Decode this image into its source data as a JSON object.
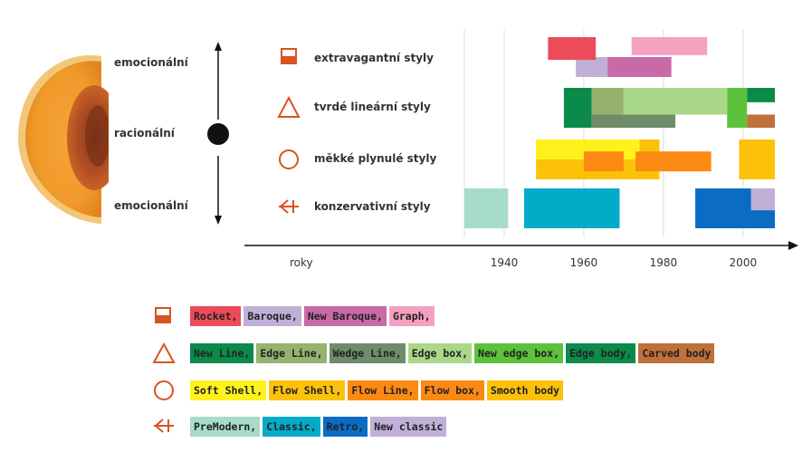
{
  "colors": {
    "accent": "#d9531e",
    "axis": "#111111",
    "grid": "#dddddd"
  },
  "moods": [
    {
      "label": "emocionální"
    },
    {
      "label": "racionální"
    },
    {
      "label": "emocionální"
    }
  ],
  "styles": [
    {
      "icon": "filled-square-icon",
      "label": "extravagantní styly"
    },
    {
      "icon": "triangle-icon",
      "label": "tvrdé lineární styly"
    },
    {
      "icon": "circle-icon",
      "label": "měkké plynulé styly"
    },
    {
      "icon": "arrow-left-icon",
      "label": "konzervativní styly"
    }
  ],
  "chart_data": {
    "type": "timeline",
    "xlabel": "roky",
    "xlim": [
      1930,
      2008
    ],
    "ticks": [
      1940,
      1960,
      1980,
      2000
    ],
    "rows": [
      "extravagantní styly",
      "tvrdé lineární styly",
      "měkké plynulé styly",
      "konzervativní styly"
    ],
    "bars": [
      {
        "name": "Baroque",
        "row": 0,
        "start": 1958,
        "end": 1967,
        "lane": [
          0.5,
          1
        ],
        "color": "#c0b0d8"
      },
      {
        "name": "Rocket",
        "row": 0,
        "start": 1951,
        "end": 1963,
        "lane": [
          0,
          0.57
        ],
        "color": "#ec4b5a"
      },
      {
        "name": "New Baroque",
        "row": 0,
        "start": 1966,
        "end": 1982,
        "lane": [
          0.5,
          1
        ],
        "color": "#c86aa8"
      },
      {
        "name": "Graph",
        "row": 0,
        "start": 1972,
        "end": 1991,
        "lane": [
          0,
          0.45
        ],
        "color": "#f5a0c0"
      },
      {
        "name": "New Line",
        "row": 1,
        "start": 1955,
        "end": 1962,
        "lane": [
          0,
          1
        ],
        "color": "#0b8a4a"
      },
      {
        "name": "Wedge Line",
        "row": 1,
        "start": 1962,
        "end": 1983,
        "lane": [
          0.67,
          1
        ],
        "color": "#6e8c6a"
      },
      {
        "name": "Edge Line",
        "row": 1,
        "start": 1962,
        "end": 1970,
        "lane": [
          0,
          0.67
        ],
        "color": "#96b26e"
      },
      {
        "name": "Edge box",
        "row": 1,
        "start": 1970,
        "end": 1996,
        "lane": [
          0,
          0.67
        ],
        "color": "#a8d888"
      },
      {
        "name": "New edge box",
        "row": 1,
        "start": 1996,
        "end": 2001,
        "lane": [
          0,
          1
        ],
        "color": "#5cc23c"
      },
      {
        "name": "Edge body",
        "row": 1,
        "start": 2001,
        "end": 2008,
        "lane": [
          0,
          0.36
        ],
        "color": "#0b8a4a"
      },
      {
        "name": "Carved body",
        "row": 1,
        "start": 2001,
        "end": 2008,
        "lane": [
          0.67,
          1
        ],
        "color": "#c0703a"
      },
      {
        "name": "Flow Shell",
        "row": 2,
        "start": 1948,
        "end": 1979,
        "lane": [
          0,
          1
        ],
        "color": "#fcc20a"
      },
      {
        "name": "Soft Shell",
        "row": 2,
        "start": 1948,
        "end": 1974,
        "lane": [
          0,
          0.5
        ],
        "color": "#fff21c"
      },
      {
        "name": "Flow Line",
        "row": 2,
        "start": 1960,
        "end": 1970,
        "lane": [
          0.3,
          0.8
        ],
        "color": "#fb8a12"
      },
      {
        "name": "Flow box",
        "row": 2,
        "start": 1973,
        "end": 1992,
        "lane": [
          0.3,
          0.8
        ],
        "color": "#fb8a12"
      },
      {
        "name": "Smooth body",
        "row": 2,
        "start": 1999,
        "end": 2008,
        "lane": [
          0,
          1
        ],
        "color": "#fcc20a"
      },
      {
        "name": "PreModern",
        "row": 3,
        "start": 1930,
        "end": 1941,
        "lane": [
          0,
          1
        ],
        "color": "#a7dccb"
      },
      {
        "name": "Classic",
        "row": 3,
        "start": 1945,
        "end": 1969,
        "lane": [
          0,
          1
        ],
        "color": "#04abc9"
      },
      {
        "name": "Retro",
        "row": 3,
        "start": 1988,
        "end": 2008,
        "lane": [
          0,
          1
        ],
        "color": "#0b6cc4"
      },
      {
        "name": "New classic",
        "row": 3,
        "start": 2002,
        "end": 2008,
        "lane": [
          0,
          0.55
        ],
        "color": "#c0b0d8"
      }
    ]
  },
  "legend": [
    {
      "icon": "filled-square-icon",
      "items": [
        {
          "label": "Rocket,",
          "color": "#ec4b5a"
        },
        {
          "label": "Baroque,",
          "color": "#c0b0d8"
        },
        {
          "label": "New Baroque,",
          "color": "#c86aa8"
        },
        {
          "label": "Graph,",
          "color": "#f5a0c0"
        }
      ]
    },
    {
      "icon": "triangle-icon",
      "items": [
        {
          "label": "New Line,",
          "color": "#0b8a4a"
        },
        {
          "label": "Edge Line,",
          "color": "#96b26e"
        },
        {
          "label": "Wedge Line,",
          "color": "#6e8c6a"
        },
        {
          "label": "Edge box,",
          "color": "#a8d888"
        },
        {
          "label": "New edge box,",
          "color": "#5cc23c"
        },
        {
          "label": "Edge body,",
          "color": "#0b8a4a"
        },
        {
          "label": "Carved body",
          "color": "#c0703a"
        }
      ]
    },
    {
      "icon": "circle-icon",
      "items": [
        {
          "label": "Soft Shell,",
          "color": "#fff21c"
        },
        {
          "label": "Flow Shell,",
          "color": "#fcc20a"
        },
        {
          "label": "Flow Line,",
          "color": "#fb8a12"
        },
        {
          "label": "Flow box,",
          "color": "#fb8a12"
        },
        {
          "label": "Smooth body",
          "color": "#fcc20a"
        }
      ]
    },
    {
      "icon": "arrow-left-icon",
      "items": [
        {
          "label": "PreModern,",
          "color": "#a7dccb"
        },
        {
          "label": "Classic,",
          "color": "#04abc9"
        },
        {
          "label": "Retro,",
          "color": "#0b6cc4"
        },
        {
          "label": "New classic",
          "color": "#c0b0d8"
        }
      ]
    }
  ]
}
